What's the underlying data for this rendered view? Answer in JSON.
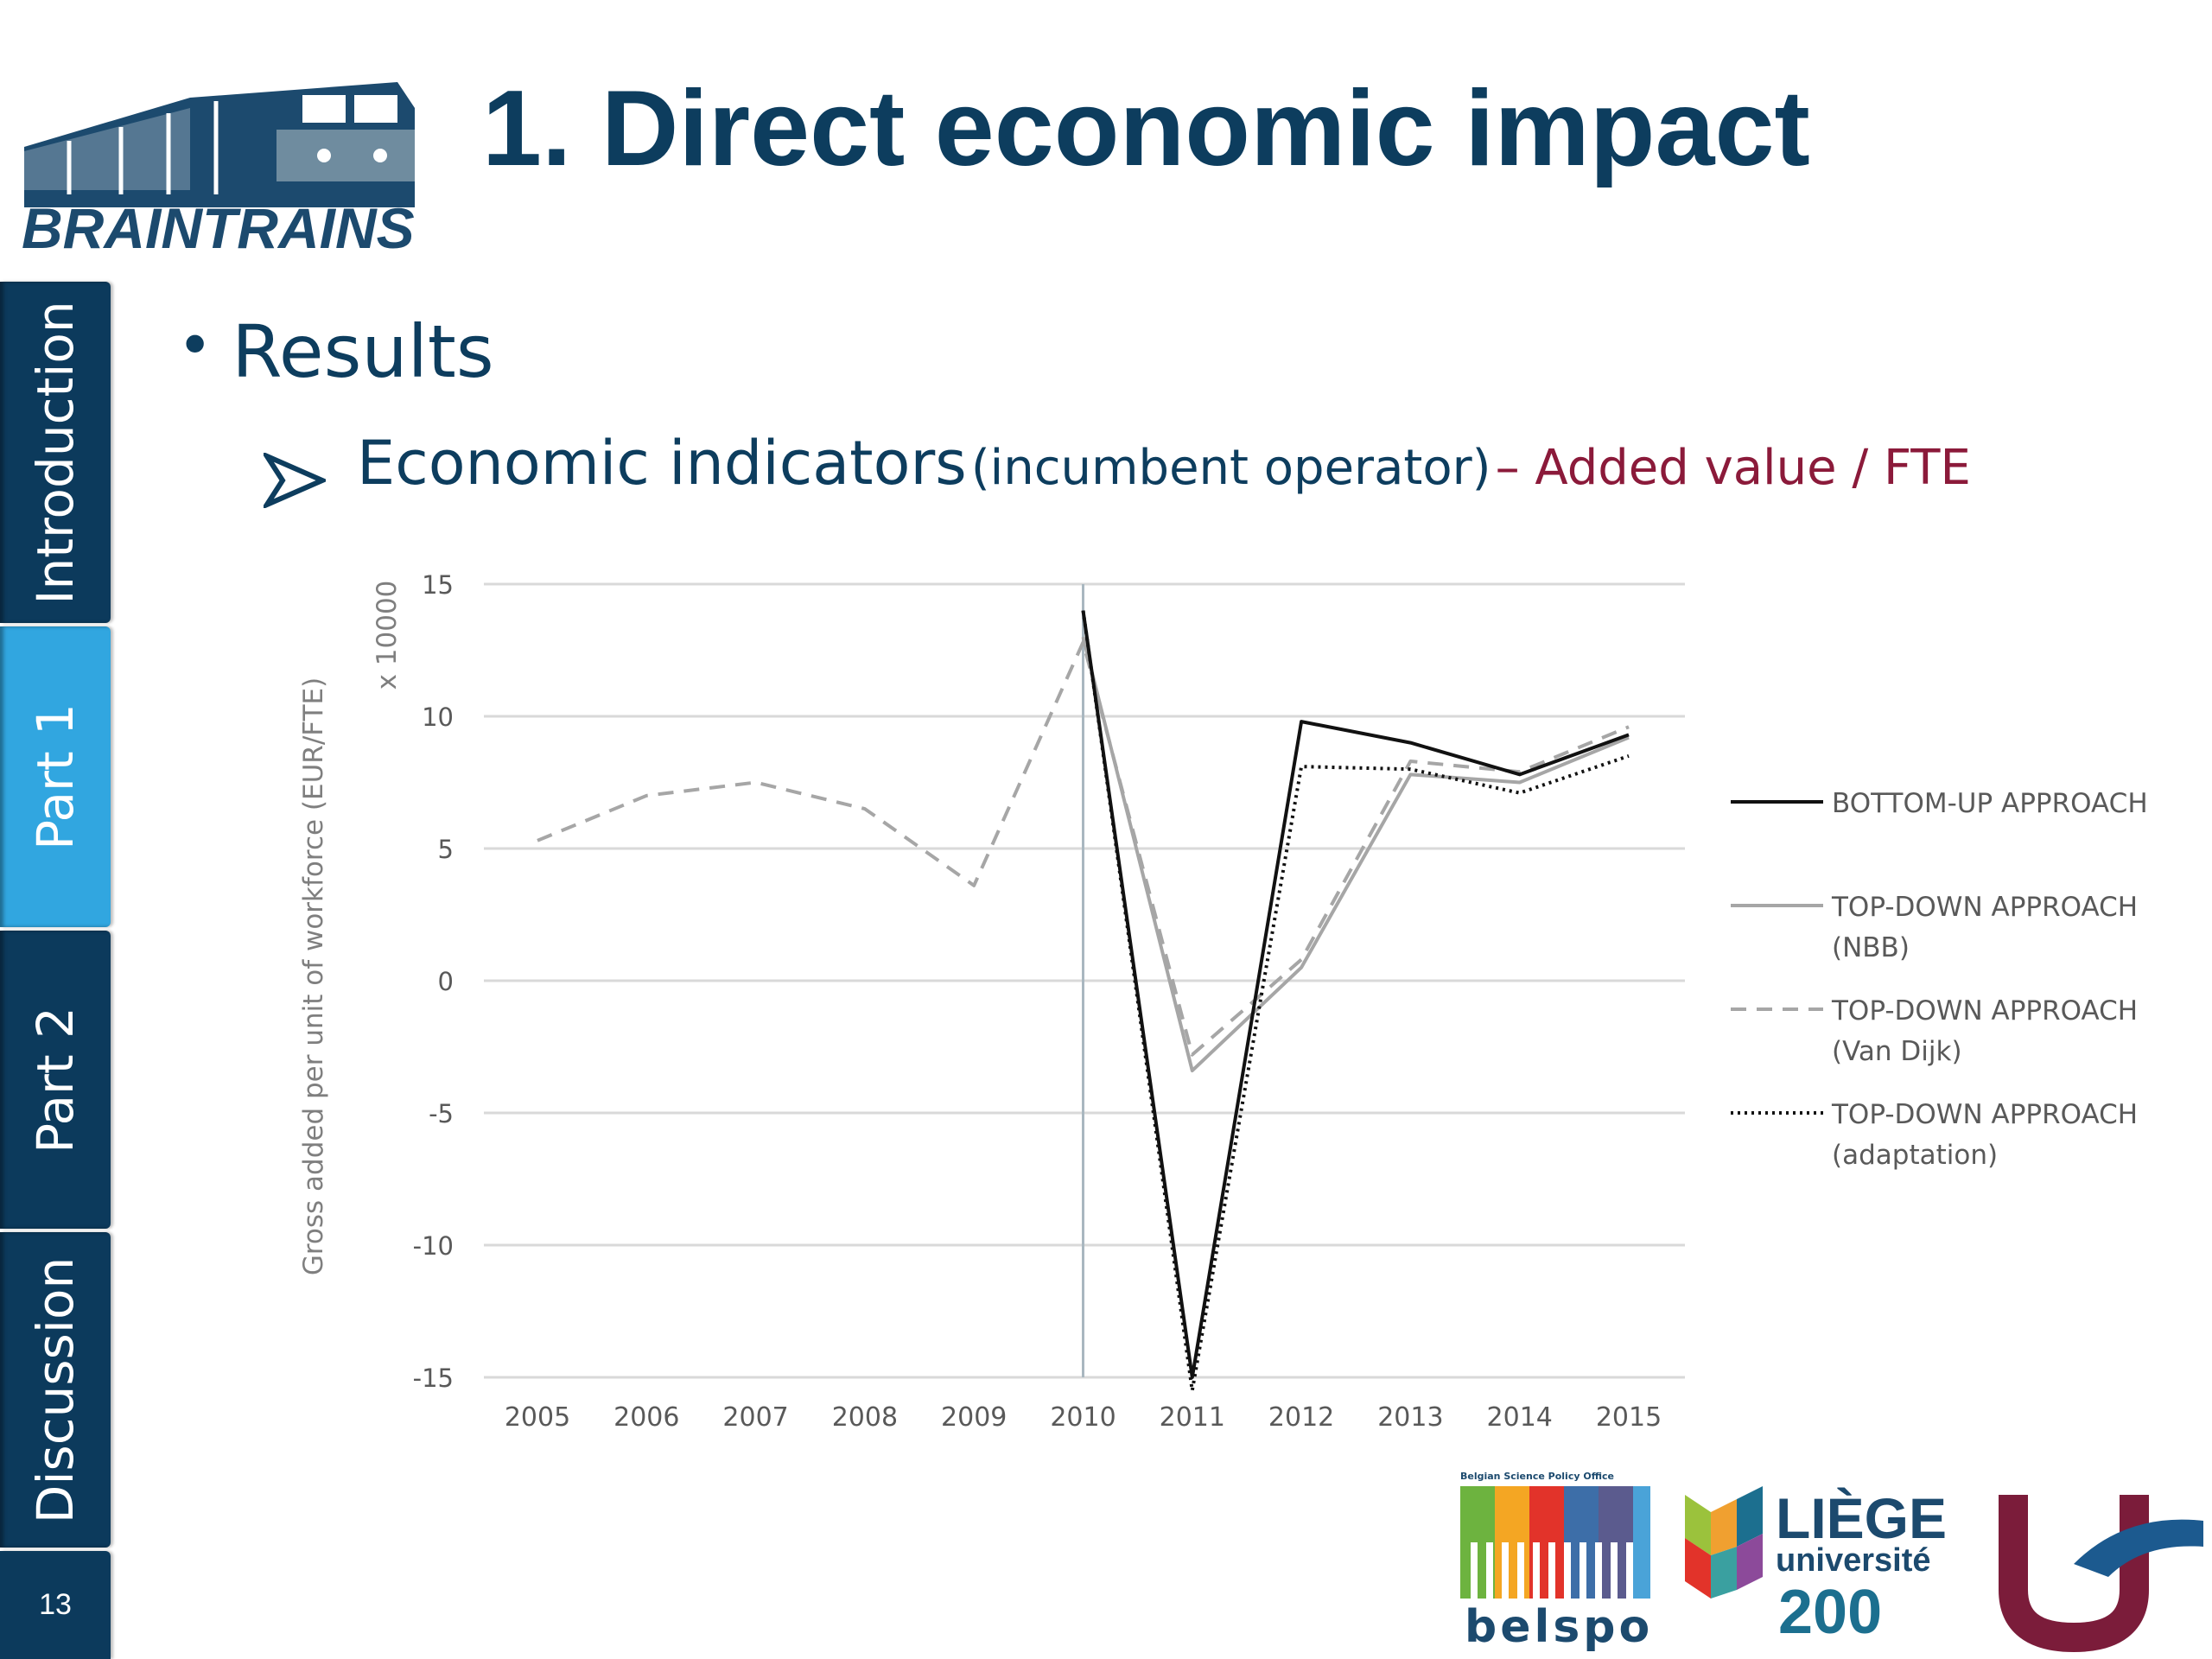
{
  "slide": {
    "title": "1. Direct economic impact",
    "page_number": "13",
    "logo_text": "BRAINTRAINS",
    "nav": [
      {
        "label": "Introduction",
        "active": false
      },
      {
        "label": "Part 1",
        "active": true
      },
      {
        "label": "Part 2",
        "active": false
      },
      {
        "label": "Discussion",
        "active": false
      }
    ],
    "bullet_1": "Results",
    "bullet_2": {
      "main": "Economic indicators",
      "paren": "(incumbent operator)",
      "accent": "– Added value / FTE"
    },
    "sponsors": {
      "belspo_tagline": "Belgian Science Policy Office",
      "belspo_name": "belspo",
      "liege_line1": "LIÈGE",
      "liege_line2": "université",
      "liege_line3": "200"
    },
    "colors": {
      "navy": "#0c3a5c",
      "title": "#0d3d5e",
      "active_tab": "#31a6e0",
      "accent": "#8b1a3a"
    }
  },
  "chart_data": {
    "type": "line",
    "ylabel": "Gross added per unit of workforce (EUR/FTE)",
    "y_multiplier_label": "x 10000",
    "ylim": [
      -15,
      15
    ],
    "yticks": [
      15,
      10,
      5,
      0,
      -5,
      -10,
      -15
    ],
    "ytick_labels": [
      "15",
      "10",
      "5",
      "0",
      "-5",
      "-10",
      "-15"
    ],
    "x": [
      "2005",
      "2006",
      "2007",
      "2008",
      "2009",
      "2010",
      "2011",
      "2012",
      "2013",
      "2014",
      "2015"
    ],
    "grid": true,
    "vertical_marker_at": "2010",
    "legend_position": "right",
    "series": [
      {
        "name": "BOTTOM-UP APPROACH",
        "style": "solid",
        "color": "#111111",
        "values": [
          null,
          null,
          null,
          null,
          null,
          14,
          -15,
          9.8,
          9,
          7.8,
          9.3
        ]
      },
      {
        "name": "TOP-DOWN APPROACH (NBB)",
        "style": "solid",
        "color": "#a6a6a6",
        "values": [
          null,
          null,
          null,
          null,
          null,
          13,
          -3.4,
          0.5,
          7.8,
          7.5,
          9.2
        ]
      },
      {
        "name": "TOP-DOWN APPROACH (Van Dijk)",
        "style": "dashed",
        "color": "#a6a6a6",
        "values": [
          5.3,
          7,
          7.5,
          6.5,
          3.6,
          12.8,
          -2.8,
          0.8,
          8.3,
          7.9,
          9.6
        ]
      },
      {
        "name": "TOP-DOWN APPROACH (adaptation)",
        "style": "dotted",
        "color": "#111111",
        "values": [
          null,
          null,
          null,
          null,
          null,
          14,
          -15.5,
          8.1,
          8,
          7.1,
          8.5
        ]
      }
    ],
    "legend_lines": [
      [
        "BOTTOM-UP APPROACH"
      ],
      [
        "TOP-DOWN APPROACH",
        "(NBB)"
      ],
      [
        "TOP-DOWN APPROACH",
        "(Van Dijk)"
      ],
      [
        "TOP-DOWN APPROACH",
        "(adaptation)"
      ]
    ]
  }
}
